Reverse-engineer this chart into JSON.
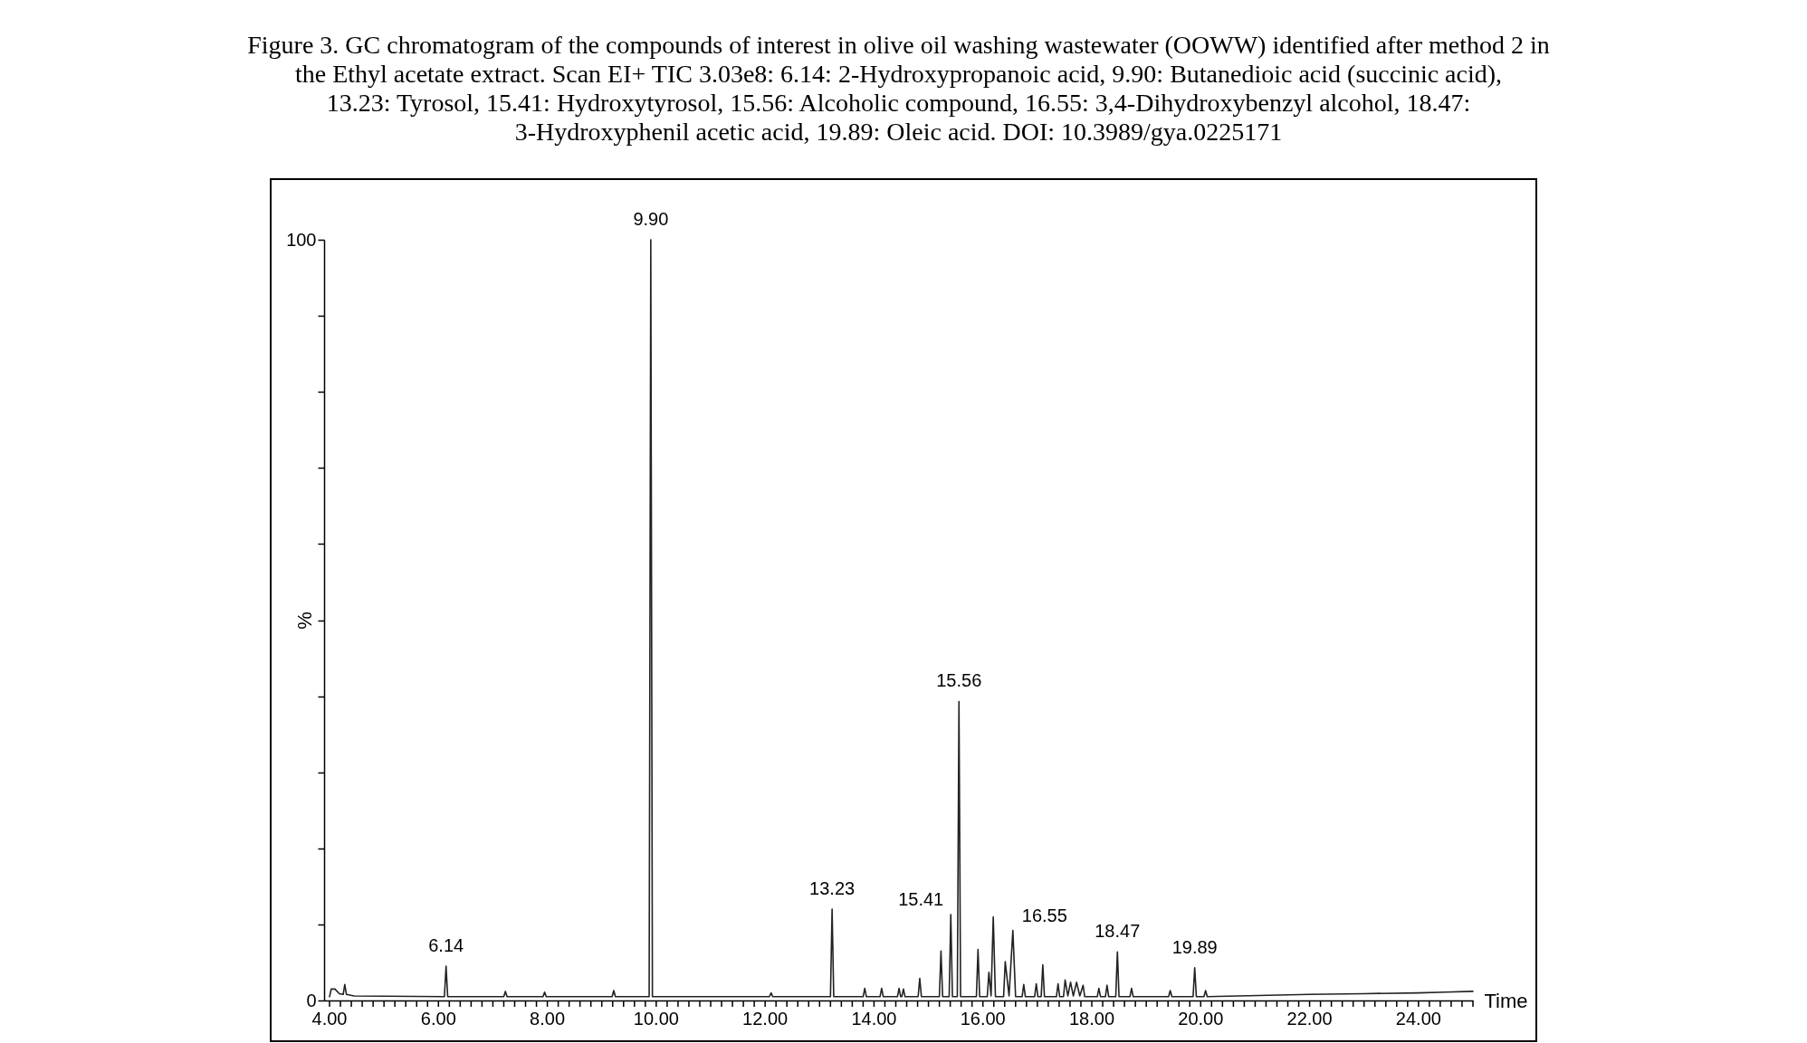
{
  "chart_data": {
    "type": "line",
    "title": "Figure 3. GC chromatogram of the compounds of interest in olive oil washing wastewater (OOWW) identified after method 2 in the Ethyl acetate extract. Scan EI+ TIC 3.03e8: 6.14: 2-Hydroxypropanoic acid, 9.90: Butanedioic acid (succinic acid), 13.23: Tyrosol, 15.41: Hydroxytyrosol, 15.56: Alcoholic compound, 16.55: 3,4-Dihydroxybenzyl alcohol, 18.47: 3-Hydroxyphenil acetic acid, 19.89: Oleic acid. DOI: 10.3989/gya.0225171",
    "xlabel": "Time",
    "ylabel": "%",
    "xlim": [
      3.9,
      25.0
    ],
    "ylim": [
      0,
      100
    ],
    "xticks": [
      {
        "value": 4,
        "label": "4.00"
      },
      {
        "value": 4.2,
        "label": null
      },
      {
        "value": 4.4,
        "label": null
      },
      {
        "value": 4.6,
        "label": null
      },
      {
        "value": 4.8,
        "label": null
      },
      {
        "value": 5,
        "label": null
      },
      {
        "value": 5.2,
        "label": null
      },
      {
        "value": 5.4,
        "label": null
      },
      {
        "value": 5.6,
        "label": null
      },
      {
        "value": 5.8,
        "label": null
      },
      {
        "value": 6,
        "label": "6.00"
      },
      {
        "value": 6.2,
        "label": null
      },
      {
        "value": 6.4,
        "label": null
      },
      {
        "value": 6.6,
        "label": null
      },
      {
        "value": 6.8,
        "label": null
      },
      {
        "value": 7,
        "label": null
      },
      {
        "value": 7.2,
        "label": null
      },
      {
        "value": 7.4,
        "label": null
      },
      {
        "value": 7.6,
        "label": null
      },
      {
        "value": 7.8,
        "label": null
      },
      {
        "value": 8,
        "label": "8.00"
      },
      {
        "value": 8.2,
        "label": null
      },
      {
        "value": 8.4,
        "label": null
      },
      {
        "value": 8.6,
        "label": null
      },
      {
        "value": 8.8,
        "label": null
      },
      {
        "value": 9,
        "label": null
      },
      {
        "value": 9.2,
        "label": null
      },
      {
        "value": 9.4,
        "label": null
      },
      {
        "value": 9.6,
        "label": null
      },
      {
        "value": 9.8,
        "label": null
      },
      {
        "value": 10,
        "label": "10.00"
      },
      {
        "value": 10.2,
        "label": null
      },
      {
        "value": 10.4,
        "label": null
      },
      {
        "value": 10.6,
        "label": null
      },
      {
        "value": 10.8,
        "label": null
      },
      {
        "value": 11,
        "label": null
      },
      {
        "value": 11.2,
        "label": null
      },
      {
        "value": 11.4,
        "label": null
      },
      {
        "value": 11.6,
        "label": null
      },
      {
        "value": 11.8,
        "label": null
      },
      {
        "value": 12,
        "label": "12.00"
      },
      {
        "value": 12.2,
        "label": null
      },
      {
        "value": 12.4,
        "label": null
      },
      {
        "value": 12.6,
        "label": null
      },
      {
        "value": 12.8,
        "label": null
      },
      {
        "value": 13,
        "label": null
      },
      {
        "value": 13.2,
        "label": null
      },
      {
        "value": 13.4,
        "label": null
      },
      {
        "value": 13.6,
        "label": null
      },
      {
        "value": 13.8,
        "label": null
      },
      {
        "value": 14,
        "label": "14.00"
      },
      {
        "value": 14.2,
        "label": null
      },
      {
        "value": 14.4,
        "label": null
      },
      {
        "value": 14.6,
        "label": null
      },
      {
        "value": 14.8,
        "label": null
      },
      {
        "value": 15,
        "label": null
      },
      {
        "value": 15.2,
        "label": null
      },
      {
        "value": 15.4,
        "label": null
      },
      {
        "value": 15.6,
        "label": null
      },
      {
        "value": 15.8,
        "label": null
      },
      {
        "value": 16,
        "label": "16.00"
      },
      {
        "value": 16.2,
        "label": null
      },
      {
        "value": 16.4,
        "label": null
      },
      {
        "value": 16.6,
        "label": null
      },
      {
        "value": 16.8,
        "label": null
      },
      {
        "value": 17,
        "label": null
      },
      {
        "value": 17.2,
        "label": null
      },
      {
        "value": 17.4,
        "label": null
      },
      {
        "value": 17.6,
        "label": null
      },
      {
        "value": 17.8,
        "label": null
      },
      {
        "value": 18,
        "label": "18.00"
      },
      {
        "value": 18.2,
        "label": null
      },
      {
        "value": 18.4,
        "label": null
      },
      {
        "value": 18.6,
        "label": null
      },
      {
        "value": 18.8,
        "label": null
      },
      {
        "value": 19,
        "label": null
      },
      {
        "value": 19.2,
        "label": null
      },
      {
        "value": 19.4,
        "label": null
      },
      {
        "value": 19.6,
        "label": null
      },
      {
        "value": 19.8,
        "label": null
      },
      {
        "value": 20,
        "label": "20.00"
      },
      {
        "value": 20.2,
        "label": null
      },
      {
        "value": 20.4,
        "label": null
      },
      {
        "value": 20.6,
        "label": null
      },
      {
        "value": 20.8,
        "label": null
      },
      {
        "value": 21,
        "label": null
      },
      {
        "value": 21.2,
        "label": null
      },
      {
        "value": 21.4,
        "label": null
      },
      {
        "value": 21.6,
        "label": null
      },
      {
        "value": 21.8,
        "label": null
      },
      {
        "value": 22,
        "label": "22.00"
      },
      {
        "value": 22.2,
        "label": null
      },
      {
        "value": 22.4,
        "label": null
      },
      {
        "value": 22.6,
        "label": null
      },
      {
        "value": 22.8,
        "label": null
      },
      {
        "value": 23,
        "label": null
      },
      {
        "value": 23.2,
        "label": null
      },
      {
        "value": 23.4,
        "label": null
      },
      {
        "value": 23.6,
        "label": null
      },
      {
        "value": 23.8,
        "label": null
      },
      {
        "value": 24,
        "label": "24.00"
      },
      {
        "value": 24.2,
        "label": null
      },
      {
        "value": 24.4,
        "label": null
      },
      {
        "value": 24.6,
        "label": null
      },
      {
        "value": 24.8,
        "label": null
      },
      {
        "value": 25,
        "label": null
      }
    ],
    "yticks": [
      0,
      {
        "value": 10,
        "label": null
      },
      {
        "value": 20,
        "label": null
      },
      {
        "value": 30,
        "label": null
      },
      {
        "value": 40,
        "label": null
      },
      {
        "value": 50,
        "label": null
      },
      {
        "value": 60,
        "label": null
      },
      {
        "value": 70,
        "label": null
      },
      {
        "value": 80,
        "label": null
      },
      {
        "value": 90,
        "label": null
      },
      100
    ],
    "series": [
      {
        "color": "#222222",
        "x": [
          4.0,
          4.03,
          4.1,
          4.18,
          4.25,
          4.28,
          4.31,
          4.45,
          6.11,
          6.14,
          6.17,
          7.2,
          7.23,
          7.26,
          7.92,
          7.95,
          7.98,
          9.19,
          9.22,
          9.25,
          9.87,
          9.9,
          9.93,
          12.08,
          12.11,
          12.14,
          13.2,
          13.23,
          13.26,
          13.8,
          13.83,
          13.86,
          14.11,
          14.14,
          14.17,
          14.43,
          14.46,
          14.49,
          14.51,
          14.54,
          14.57,
          14.81,
          14.84,
          14.87,
          15.2,
          15.23,
          15.26,
          15.38,
          15.41,
          15.44,
          15.53,
          15.56,
          15.59,
          15.88,
          15.91,
          15.94,
          16.08,
          16.11,
          16.15,
          16.19,
          16.23,
          16.38,
          16.41,
          16.48,
          16.55,
          16.6,
          16.72,
          16.75,
          16.78,
          16.95,
          16.98,
          17.01,
          17.07,
          17.1,
          17.13,
          17.35,
          17.38,
          17.41,
          17.48,
          17.51,
          17.56,
          17.61,
          17.66,
          17.72,
          17.78,
          17.84,
          17.87,
          18.1,
          18.13,
          18.16,
          18.25,
          18.28,
          18.31,
          18.44,
          18.47,
          18.5,
          18.7,
          18.73,
          18.76,
          19.41,
          19.44,
          19.47,
          19.86,
          19.89,
          19.92,
          20.06,
          20.09,
          20.12,
          22.0,
          23.0,
          24.0,
          24.5,
          25.0
        ],
        "values": [
          0.5,
          1.5,
          1.5,
          0.9,
          0.8,
          2.1,
          0.8,
          0.6,
          0.5,
          4.5,
          0.5,
          0.5,
          1.2,
          0.5,
          0.5,
          1.1,
          0.5,
          0.5,
          1.3,
          0.5,
          0.5,
          100,
          0.5,
          0.5,
          1.0,
          0.5,
          0.5,
          12.0,
          0.5,
          0.5,
          1.6,
          0.5,
          0.5,
          1.6,
          0.5,
          0.5,
          1.6,
          0.5,
          0.5,
          1.5,
          0.5,
          0.5,
          2.9,
          0.5,
          0.5,
          6.5,
          0.5,
          0.5,
          11.3,
          0.5,
          0.5,
          39.3,
          0.5,
          0.5,
          6.7,
          0.5,
          0.5,
          3.7,
          0.6,
          11.0,
          0.5,
          0.5,
          5.1,
          0.6,
          9.2,
          0.5,
          0.5,
          2.1,
          0.5,
          0.5,
          2.2,
          0.5,
          0.5,
          4.7,
          0.5,
          0.5,
          2.2,
          0.5,
          0.5,
          2.7,
          0.6,
          2.4,
          0.6,
          2.4,
          0.6,
          2.0,
          0.5,
          0.5,
          1.6,
          0.5,
          0.5,
          2.0,
          0.5,
          0.5,
          6.4,
          0.5,
          0.5,
          1.6,
          0.5,
          0.5,
          1.3,
          0.5,
          0.5,
          4.3,
          0.5,
          0.5,
          1.3,
          0.5,
          0.8,
          0.9,
          1.0,
          1.1,
          1.2
        ]
      }
    ],
    "annotations": [
      {
        "text": "6.14",
        "x": 6.14,
        "y": 4.5
      },
      {
        "text": "9.90",
        "x": 9.9,
        "y": 100
      },
      {
        "text": "13.23",
        "x": 13.23,
        "y": 12.0
      },
      {
        "text": "15.41",
        "x": 15.41,
        "y": 11.3
      },
      {
        "text": "15.56",
        "x": 15.56,
        "y": 39.3
      },
      {
        "text": "16.55",
        "x": 16.55,
        "y": 9.2
      },
      {
        "text": "18.47",
        "x": 18.47,
        "y": 6.4
      },
      {
        "text": "19.89",
        "x": 19.89,
        "y": 4.3
      }
    ]
  }
}
